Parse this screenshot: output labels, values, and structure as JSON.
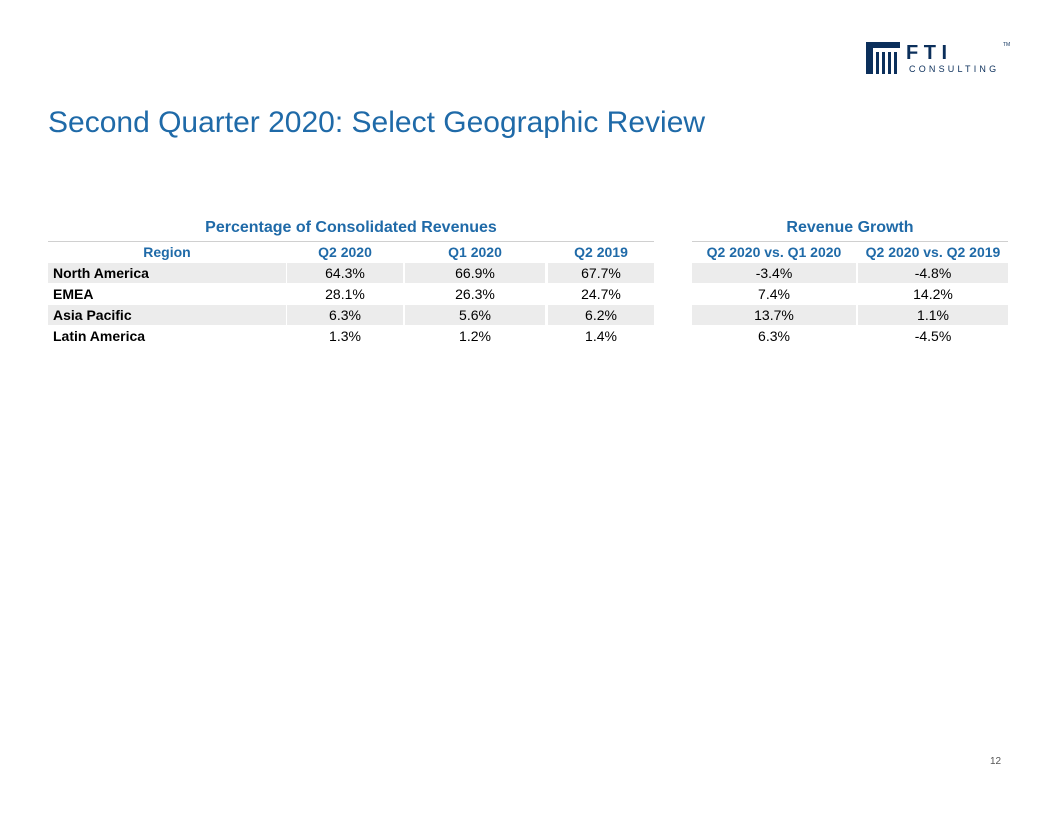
{
  "logo": {
    "word": "F T I",
    "sub": "CONSULTING",
    "tm": "TM"
  },
  "title": "Second Quarter 2020: Select Geographic Review",
  "groups": {
    "pct": "Percentage of Consolidated Revenues",
    "growth": "Revenue Growth"
  },
  "headers": [
    "Region",
    "Q2 2020",
    "Q1 2020",
    "Q2 2019",
    "Q2 2020 vs. Q1 2020",
    "Q2 2020 vs. Q2 2019"
  ],
  "rows": [
    {
      "region": "North America",
      "q2_2020": "64.3%",
      "q1_2020": "66.9%",
      "q2_2019": "67.7%",
      "vs_q1": "-3.4%",
      "vs_q2": "-4.8%"
    },
    {
      "region": "EMEA",
      "q2_2020": "28.1%",
      "q1_2020": "26.3%",
      "q2_2019": "24.7%",
      "vs_q1": "7.4%",
      "vs_q2": "14.2%"
    },
    {
      "region": "Asia Pacific",
      "q2_2020": "6.3%",
      "q1_2020": "5.6%",
      "q2_2019": "6.2%",
      "vs_q1": "13.7%",
      "vs_q2": "1.1%"
    },
    {
      "region": "Latin America",
      "q2_2020": "1.3%",
      "q1_2020": "1.2%",
      "q2_2019": "1.4%",
      "vs_q1": "6.3%",
      "vs_q2": "-4.5%"
    }
  ],
  "page_number": "12",
  "colors": {
    "accent": "#1f6aa8",
    "logo": "#0b2f5b",
    "shade": "#ececec"
  }
}
